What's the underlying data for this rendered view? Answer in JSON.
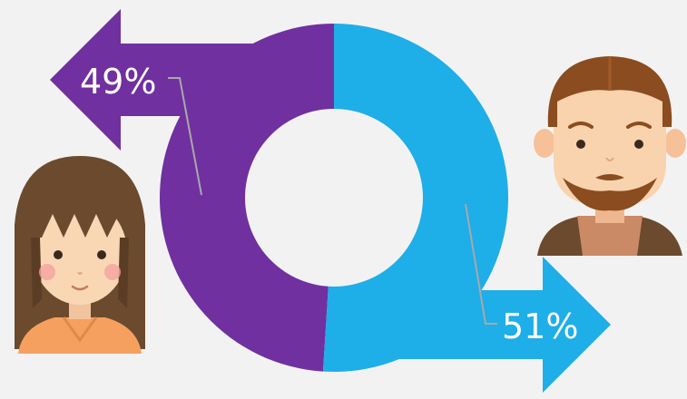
{
  "chart_data": {
    "type": "pie",
    "variant": "donut",
    "categories": [
      "female",
      "male"
    ],
    "values": [
      49,
      51
    ],
    "labels": [
      "49%",
      "51%"
    ],
    "colors": [
      "#7030a0",
      "#1eaee8"
    ],
    "title": "",
    "legend": "none"
  },
  "icons": {
    "female": "female-avatar-icon",
    "male": "male-avatar-icon"
  },
  "colors": {
    "background": "#f2f2f2",
    "leader": "#a9a9a9"
  }
}
